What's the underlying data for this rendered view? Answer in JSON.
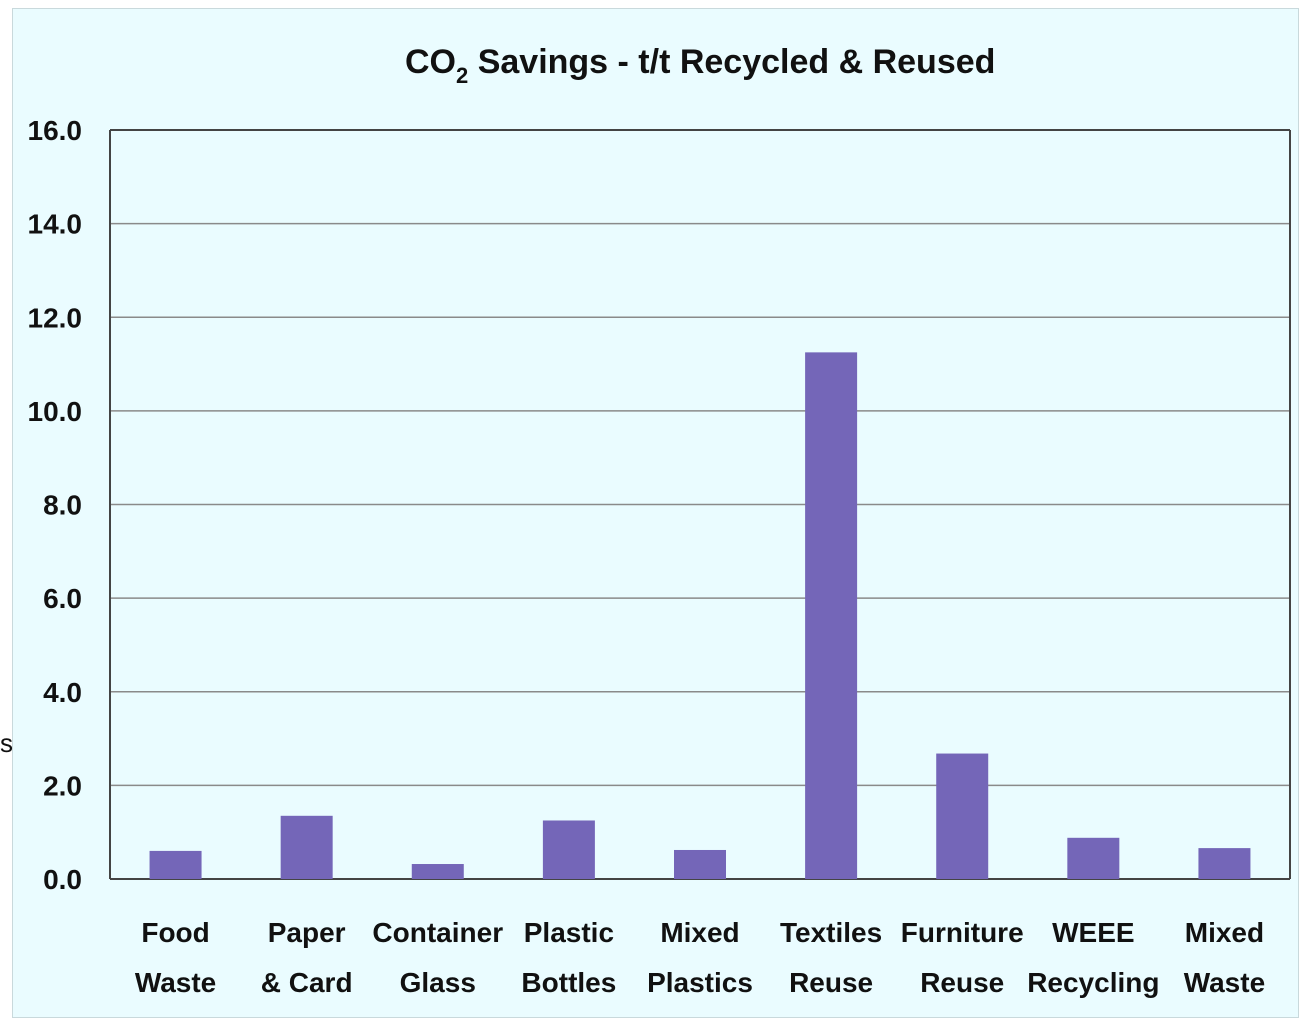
{
  "chart_data": {
    "type": "bar",
    "title": {
      "main": "CO",
      "sub": "2",
      "rest": " Savings - t/t Recycled & Reused"
    },
    "categories": [
      [
        "Food",
        "Waste"
      ],
      [
        "Paper",
        "& Card"
      ],
      [
        "Container",
        "Glass"
      ],
      [
        "Plastic",
        "Bottles"
      ],
      [
        "Mixed",
        "Plastics"
      ],
      [
        "Textiles",
        "Reuse"
      ],
      [
        "Furniture",
        "Reuse"
      ],
      [
        "WEEE",
        "Recycling"
      ],
      [
        "Mixed",
        "Waste"
      ]
    ],
    "values": [
      0.6,
      1.35,
      0.32,
      1.25,
      0.62,
      11.25,
      2.68,
      0.88,
      0.66
    ],
    "ylim": [
      0,
      16
    ],
    "yticks": [
      "0.0",
      "2.0",
      "4.0",
      "6.0",
      "8.0",
      "10.0",
      "12.0",
      "14.0",
      "16.0"
    ],
    "grid": true,
    "bar_color": "#7466b8",
    "grid_color": "#8a8a8a",
    "plot_background": "#eafcff"
  },
  "stray_mark": "s"
}
